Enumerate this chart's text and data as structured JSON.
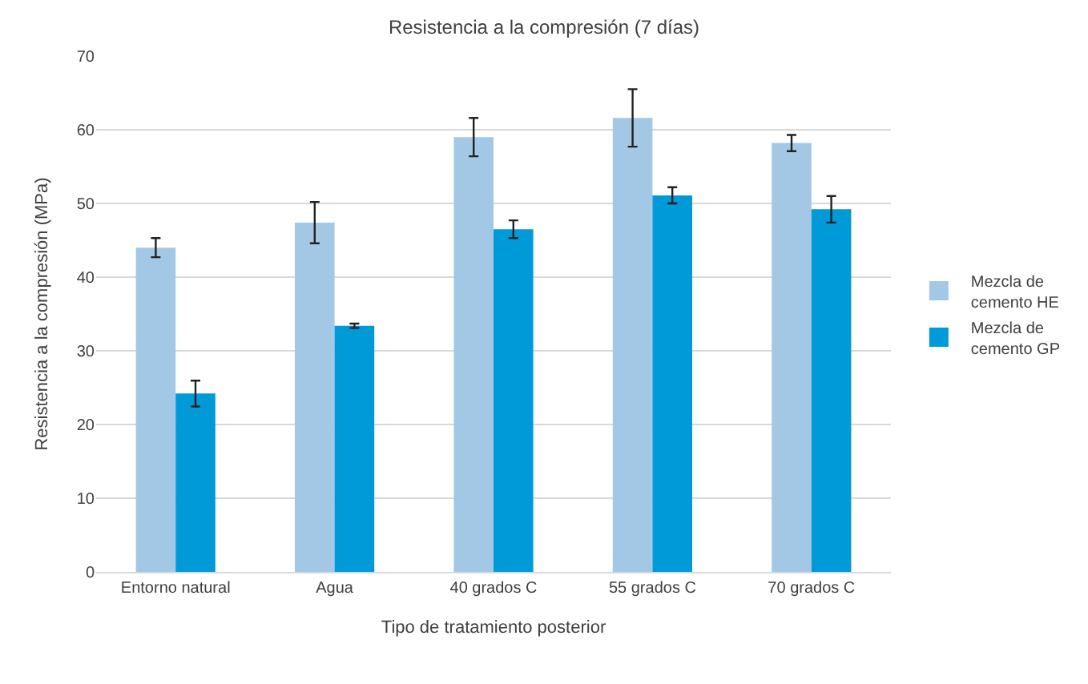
{
  "chart_data": {
    "type": "bar",
    "title": "Resistencia a la compresión (7 días)",
    "xlabel": "Tipo de tratamiento posterior",
    "ylabel": "Resistencia a la compresión (MPa)",
    "categories": [
      "Entorno natural",
      "Agua",
      "40 grados C",
      "55 grados C",
      "70 grados C"
    ],
    "series": [
      {
        "name": "Mezcla de\ncemento HE",
        "color": "#a3c8e6",
        "values": [
          44.0,
          47.4,
          59.0,
          61.6,
          58.2
        ],
        "errors": [
          1.3,
          2.8,
          2.6,
          3.9,
          1.1
        ]
      },
      {
        "name": "Mezcla de\ncemento GP",
        "color": "#009ad9",
        "values": [
          24.2,
          33.4,
          46.5,
          51.1,
          49.2
        ],
        "errors": [
          1.75,
          0.3,
          1.2,
          1.1,
          1.8
        ]
      }
    ],
    "ylim": [
      0,
      70
    ],
    "yticks": [
      0,
      10,
      20,
      30,
      40,
      50,
      60,
      70
    ],
    "grid": "y",
    "legend": "right"
  }
}
